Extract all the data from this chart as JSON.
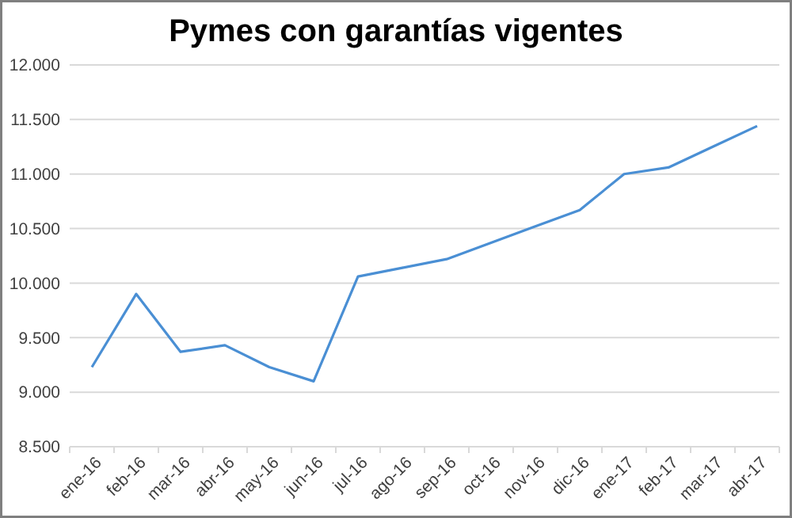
{
  "chart_data": {
    "type": "line",
    "title": "Pymes con garantías vigentes",
    "categories": [
      "ene-16",
      "feb-16",
      "mar-16",
      "abr-16",
      "may-16",
      "jun-16",
      "jul-16",
      "ago-16",
      "sep-16",
      "oct-16",
      "nov-16",
      "dic-16",
      "ene-17",
      "feb-17",
      "mar-17",
      "abr-17"
    ],
    "series": [
      {
        "color": "#4a8fd4",
        "values": [
          9230,
          9900,
          9370,
          9430,
          9230,
          9100,
          10060,
          10140,
          10220,
          10370,
          10520,
          10670,
          11000,
          11060,
          11250,
          11440
        ]
      }
    ],
    "ylim": [
      8500,
      12000
    ],
    "yticks": [
      {
        "value": 8500,
        "label": "8.500"
      },
      {
        "value": 9000,
        "label": "9.000"
      },
      {
        "value": 9500,
        "label": "9.500"
      },
      {
        "value": 10000,
        "label": "10.000"
      },
      {
        "value": 10500,
        "label": "10.500"
      },
      {
        "value": 11000,
        "label": "11.000"
      },
      {
        "value": 11500,
        "label": "11.500"
      },
      {
        "value": 12000,
        "label": "12.000"
      }
    ],
    "grid": "y",
    "marker": "none",
    "line_style": "solid"
  }
}
